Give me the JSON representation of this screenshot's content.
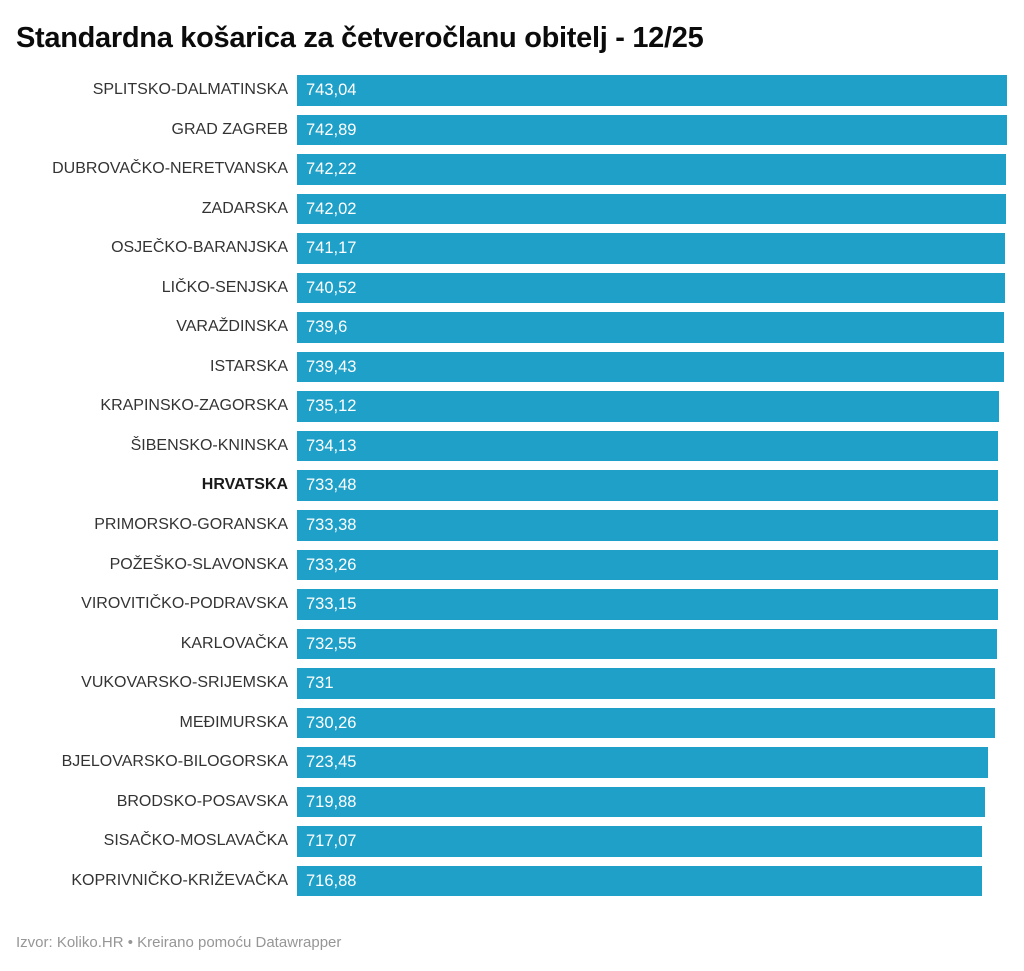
{
  "title": "Standardna košarica za četveročlanu obitelj - 12/25",
  "footer": {
    "text": "Izvor: Koliko.HR • Kreirano pomoću Datawrapper"
  },
  "chart_data": {
    "type": "bar",
    "orientation": "horizontal",
    "title": "Standardna košarica za četveročlanu obitelj - 12/25",
    "xlabel": "",
    "ylabel": "",
    "xlim": [
      0,
      743.04
    ],
    "grid": false,
    "legend": false,
    "bar_color": "#1ea0c8",
    "value_label_color": "#ffffff",
    "bold_category": "HRVATSKA",
    "categories": [
      "SPLITSKO-DALMATINSKA",
      "GRAD ZAGREB",
      "DUBROVAČKO-NERETVANSKA",
      "ZADARSKA",
      "OSJEČKO-BARANJSKA",
      "LIČKO-SENJSKA",
      "VARAŽDINSKA",
      "ISTARSKA",
      "KRAPINSKO-ZAGORSKA",
      "ŠIBENSKO-KNINSKA",
      "HRVATSKA",
      "PRIMORSKO-GORANSKA",
      "POŽEŠKO-SLAVONSKA",
      "VIROVITIČKO-PODRAVSKA",
      "KARLOVAČKA",
      "VUKOVARSKO-SRIJEMSKA",
      "MEĐIMURSKA",
      "BJELOVARSKO-BILOGORSKA",
      "BRODSKO-POSAVSKA",
      "SISAČKO-MOSLAVAČKA",
      "KOPRIVNIČKO-KRIŽEVAČKA"
    ],
    "values": [
      743.04,
      742.89,
      742.22,
      742.02,
      741.17,
      740.52,
      739.6,
      739.43,
      735.12,
      734.13,
      733.48,
      733.38,
      733.26,
      733.15,
      732.55,
      731,
      730.26,
      723.45,
      719.88,
      717.07,
      716.88
    ],
    "value_labels": [
      "743,04",
      "742,89",
      "742,22",
      "742,02",
      "741,17",
      "740,52",
      "739,6",
      "739,43",
      "735,12",
      "734,13",
      "733,48",
      "733,38",
      "733,26",
      "733,15",
      "732,55",
      "731",
      "730,26",
      "723,45",
      "719,88",
      "717,07",
      "716,88"
    ]
  }
}
